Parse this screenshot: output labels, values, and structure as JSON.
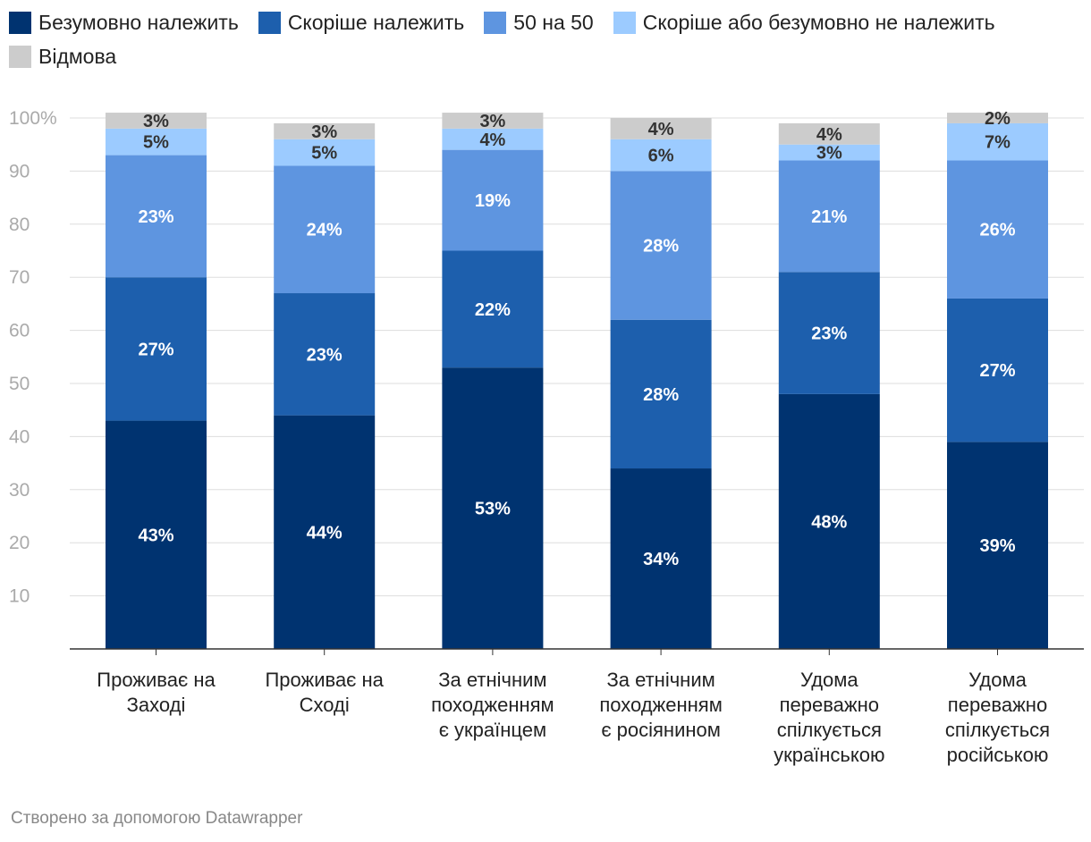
{
  "legend": [
    {
      "label": "Безумовно належить",
      "color": "#003370"
    },
    {
      "label": "Скоріше належить",
      "color": "#1d5fad"
    },
    {
      "label": "50 на 50",
      "color": "#5e95e0"
    },
    {
      "label": "Скоріше або безумовно не належить",
      "color": "#9ccbff"
    },
    {
      "label": "Відмова",
      "color": "#cccccc"
    }
  ],
  "chart_data": {
    "type": "bar",
    "stacked": true,
    "categories": [
      [
        "Проживає на",
        "Заході"
      ],
      [
        "Проживає на",
        "Сході"
      ],
      [
        "За етнічним",
        "походженням",
        "є українцем"
      ],
      [
        "За етнічним",
        "походженням",
        "є росіянином"
      ],
      [
        "Удома",
        "переважно",
        "спілкується",
        "українською"
      ],
      [
        "Удома",
        "переважно",
        "спілкується",
        "російською"
      ]
    ],
    "series": [
      {
        "name": "Безумовно належить",
        "color": "#003370",
        "values": [
          43,
          44,
          53,
          34,
          48,
          39
        ],
        "labels": [
          "43%",
          "44%",
          "53%",
          "34%",
          "48%",
          "39%"
        ],
        "label_color": "#ffffff"
      },
      {
        "name": "Скоріше належить",
        "color": "#1d5fad",
        "values": [
          27,
          23,
          22,
          28,
          23,
          27
        ],
        "labels": [
          "27%",
          "23%",
          "22%",
          "28%",
          "23%",
          "27%"
        ],
        "label_color": "#ffffff"
      },
      {
        "name": "50 на 50",
        "color": "#5e95e0",
        "values": [
          23,
          24,
          19,
          28,
          21,
          26
        ],
        "labels": [
          "23%",
          "24%",
          "19%",
          "28%",
          "21%",
          "26%"
        ],
        "label_color": "#ffffff"
      },
      {
        "name": "Скоріше або безумовно не належить",
        "color": "#9ccbff",
        "values": [
          5,
          5,
          4,
          6,
          3,
          7
        ],
        "labels": [
          "5%",
          "5%",
          "4%",
          "6%",
          "3%",
          "7%"
        ],
        "label_color": "#333333"
      },
      {
        "name": "Відмова",
        "color": "#cccccc",
        "values": [
          3,
          3,
          3,
          4,
          4,
          2
        ],
        "labels": [
          "3%",
          "3%",
          "3%",
          "4%",
          "4%",
          "2%"
        ],
        "label_color": "#333333"
      }
    ],
    "y_ticks": [
      "10",
      "20",
      "30",
      "40",
      "50",
      "60",
      "70",
      "80",
      "90",
      "100%"
    ],
    "ylim": [
      0,
      100
    ],
    "legend_position": "top-left"
  },
  "credit": "Створено за допомогою Datawrapper"
}
